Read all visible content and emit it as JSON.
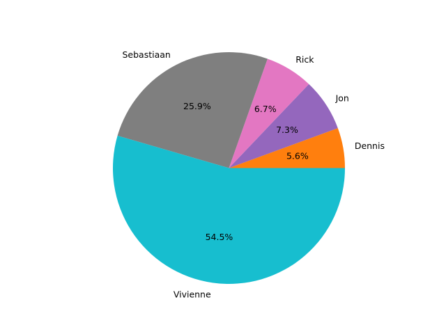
{
  "chart_data": {
    "type": "pie",
    "title": "",
    "start_angle_deg": 0,
    "direction": "counterclockwise",
    "legend": "none",
    "slices": [
      {
        "label": "Dennis",
        "value": 5.6,
        "pct_text": "5.6%",
        "color": "#ff7f0e"
      },
      {
        "label": "Jon",
        "value": 7.3,
        "pct_text": "7.3%",
        "color": "#9467bd"
      },
      {
        "label": "Rick",
        "value": 6.7,
        "pct_text": "6.7%",
        "color": "#e377c2"
      },
      {
        "label": "Sebastiaan",
        "value": 25.9,
        "pct_text": "25.9%",
        "color": "#7f7f7f"
      },
      {
        "label": "Vivienne",
        "value": 54.5,
        "pct_text": "54.5%",
        "color": "#17becf"
      }
    ]
  }
}
